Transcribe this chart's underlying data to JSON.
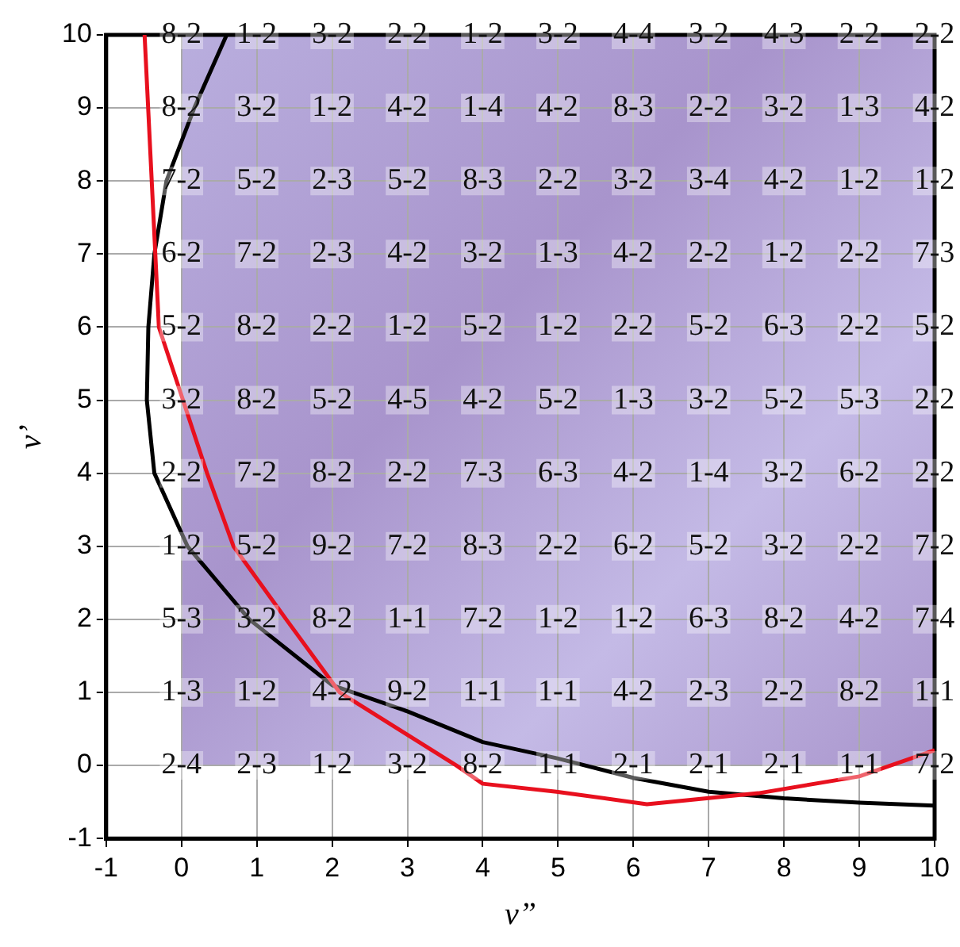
{
  "chart_data": {
    "type": "line",
    "xlabel": "ν”",
    "ylabel": "ν’",
    "xlim": [
      -1,
      10
    ],
    "xticks": [
      -1,
      0,
      1,
      2,
      3,
      4,
      5,
      6,
      7,
      8,
      9,
      10
    ],
    "ylim": [
      -1,
      10
    ],
    "yticks": [
      -1,
      0,
      1,
      2,
      3,
      4,
      5,
      6,
      7,
      8,
      9,
      10
    ],
    "grid": true,
    "legend": false,
    "marker": "none",
    "line_style": "solid",
    "series": [
      {
        "color": "#e8101e",
        "x": [
          -0.49,
          -0.3,
          0.02,
          0.34,
          0.69,
          1.39,
          2.1,
          3.65,
          4.0,
          4.98,
          6.18,
          7.66,
          9.0,
          10.0
        ],
        "values": [
          10,
          6,
          5,
          4,
          3,
          2,
          1,
          0,
          -0.25,
          -0.36,
          -0.53,
          -0.38,
          -0.15,
          0.21
        ]
      },
      {
        "color": "#000000",
        "x": [
          0.6,
          0.17,
          -0.2,
          -0.36,
          -0.44,
          -0.46,
          -0.36,
          0.08,
          0.9,
          2.0,
          3.0,
          4.0,
          4.98,
          6.0,
          7.0,
          8.0,
          9.0,
          10.0
        ],
        "values": [
          10,
          9,
          8,
          7,
          6,
          5,
          4,
          3,
          2,
          1.1,
          0.74,
          0.32,
          0.1,
          -0.17,
          -0.36,
          -0.45,
          -0.51,
          -0.55
        ]
      }
    ],
    "annotations": [
      {
        "text": "8-2",
        "x": 0,
        "y": 10
      },
      {
        "text": "1-2",
        "x": 1,
        "y": 10
      },
      {
        "text": "3-2",
        "x": 2,
        "y": 10
      },
      {
        "text": "2-2",
        "x": 3,
        "y": 10
      },
      {
        "text": "1-2",
        "x": 4,
        "y": 10
      },
      {
        "text": "3-2",
        "x": 5,
        "y": 10
      },
      {
        "text": "4-4",
        "x": 6,
        "y": 10
      },
      {
        "text": "3-2",
        "x": 7,
        "y": 10
      },
      {
        "text": "4-3",
        "x": 8,
        "y": 10
      },
      {
        "text": "2-2",
        "x": 9,
        "y": 10
      },
      {
        "text": "2-2",
        "x": 10,
        "y": 10
      },
      {
        "text": "8-2",
        "x": 0,
        "y": 9
      },
      {
        "text": "3-2",
        "x": 1,
        "y": 9
      },
      {
        "text": "1-2",
        "x": 2,
        "y": 9
      },
      {
        "text": "4-2",
        "x": 3,
        "y": 9
      },
      {
        "text": "1-4",
        "x": 4,
        "y": 9
      },
      {
        "text": "4-2",
        "x": 5,
        "y": 9
      },
      {
        "text": "8-3",
        "x": 6,
        "y": 9
      },
      {
        "text": "2-2",
        "x": 7,
        "y": 9
      },
      {
        "text": "3-2",
        "x": 8,
        "y": 9
      },
      {
        "text": "1-3",
        "x": 9,
        "y": 9
      },
      {
        "text": "4-2",
        "x": 10,
        "y": 9
      },
      {
        "text": "7-2",
        "x": 0,
        "y": 8
      },
      {
        "text": "5-2",
        "x": 1,
        "y": 8
      },
      {
        "text": "2-3",
        "x": 2,
        "y": 8
      },
      {
        "text": "5-2",
        "x": 3,
        "y": 8
      },
      {
        "text": "8-3",
        "x": 4,
        "y": 8
      },
      {
        "text": "2-2",
        "x": 5,
        "y": 8
      },
      {
        "text": "3-2",
        "x": 6,
        "y": 8
      },
      {
        "text": "3-4",
        "x": 7,
        "y": 8
      },
      {
        "text": "4-2",
        "x": 8,
        "y": 8
      },
      {
        "text": "1-2",
        "x": 9,
        "y": 8
      },
      {
        "text": "1-2",
        "x": 10,
        "y": 8
      },
      {
        "text": "6-2",
        "x": 0,
        "y": 7
      },
      {
        "text": "7-2",
        "x": 1,
        "y": 7
      },
      {
        "text": "2-3",
        "x": 2,
        "y": 7
      },
      {
        "text": "4-2",
        "x": 3,
        "y": 7
      },
      {
        "text": "3-2",
        "x": 4,
        "y": 7
      },
      {
        "text": "1-3",
        "x": 5,
        "y": 7
      },
      {
        "text": "4-2",
        "x": 6,
        "y": 7
      },
      {
        "text": "2-2",
        "x": 7,
        "y": 7
      },
      {
        "text": "1-2",
        "x": 8,
        "y": 7
      },
      {
        "text": "2-2",
        "x": 9,
        "y": 7
      },
      {
        "text": "7-3",
        "x": 10,
        "y": 7
      },
      {
        "text": "5-2",
        "x": 0,
        "y": 6
      },
      {
        "text": "8-2",
        "x": 1,
        "y": 6
      },
      {
        "text": "2-2",
        "x": 2,
        "y": 6
      },
      {
        "text": "1-2",
        "x": 3,
        "y": 6
      },
      {
        "text": "5-2",
        "x": 4,
        "y": 6
      },
      {
        "text": "1-2",
        "x": 5,
        "y": 6
      },
      {
        "text": "2-2",
        "x": 6,
        "y": 6
      },
      {
        "text": "5-2",
        "x": 7,
        "y": 6
      },
      {
        "text": "6-3",
        "x": 8,
        "y": 6
      },
      {
        "text": "2-2",
        "x": 9,
        "y": 6
      },
      {
        "text": "5-2",
        "x": 10,
        "y": 6
      },
      {
        "text": "3-2",
        "x": 0,
        "y": 5
      },
      {
        "text": "8-2",
        "x": 1,
        "y": 5
      },
      {
        "text": "5-2",
        "x": 2,
        "y": 5
      },
      {
        "text": "4-5",
        "x": 3,
        "y": 5
      },
      {
        "text": "4-2",
        "x": 4,
        "y": 5
      },
      {
        "text": "5-2",
        "x": 5,
        "y": 5
      },
      {
        "text": "1-3",
        "x": 6,
        "y": 5
      },
      {
        "text": "3-2",
        "x": 7,
        "y": 5
      },
      {
        "text": "5-2",
        "x": 8,
        "y": 5
      },
      {
        "text": "5-3",
        "x": 9,
        "y": 5
      },
      {
        "text": "2-2",
        "x": 10,
        "y": 5
      },
      {
        "text": "2-2",
        "x": 0,
        "y": 4
      },
      {
        "text": "7-2",
        "x": 1,
        "y": 4
      },
      {
        "text": "8-2",
        "x": 2,
        "y": 4
      },
      {
        "text": "2-2",
        "x": 3,
        "y": 4
      },
      {
        "text": "7-3",
        "x": 4,
        "y": 4
      },
      {
        "text": "6-3",
        "x": 5,
        "y": 4
      },
      {
        "text": "4-2",
        "x": 6,
        "y": 4
      },
      {
        "text": "1-4",
        "x": 7,
        "y": 4
      },
      {
        "text": "3-2",
        "x": 8,
        "y": 4
      },
      {
        "text": "6-2",
        "x": 9,
        "y": 4
      },
      {
        "text": "2-2",
        "x": 10,
        "y": 4
      },
      {
        "text": "1-2",
        "x": 0,
        "y": 3
      },
      {
        "text": "5-2",
        "x": 1,
        "y": 3
      },
      {
        "text": "9-2",
        "x": 2,
        "y": 3
      },
      {
        "text": "7-2",
        "x": 3,
        "y": 3
      },
      {
        "text": "8-3",
        "x": 4,
        "y": 3
      },
      {
        "text": "2-2",
        "x": 5,
        "y": 3
      },
      {
        "text": "6-2",
        "x": 6,
        "y": 3
      },
      {
        "text": "5-2",
        "x": 7,
        "y": 3
      },
      {
        "text": "3-2",
        "x": 8,
        "y": 3
      },
      {
        "text": "2-2",
        "x": 9,
        "y": 3
      },
      {
        "text": "7-2",
        "x": 10,
        "y": 3
      },
      {
        "text": "5-3",
        "x": 0,
        "y": 2
      },
      {
        "text": "3-2",
        "x": 1,
        "y": 2
      },
      {
        "text": "8-2",
        "x": 2,
        "y": 2
      },
      {
        "text": "1-1",
        "x": 3,
        "y": 2
      },
      {
        "text": "7-2",
        "x": 4,
        "y": 2
      },
      {
        "text": "1-2",
        "x": 5,
        "y": 2
      },
      {
        "text": "1-2",
        "x": 6,
        "y": 2
      },
      {
        "text": "6-3",
        "x": 7,
        "y": 2
      },
      {
        "text": "8-2",
        "x": 8,
        "y": 2
      },
      {
        "text": "4-2",
        "x": 9,
        "y": 2
      },
      {
        "text": "7-4",
        "x": 10,
        "y": 2
      },
      {
        "text": "1-3",
        "x": 0,
        "y": 1
      },
      {
        "text": "1-2",
        "x": 1,
        "y": 1
      },
      {
        "text": "4-2",
        "x": 2,
        "y": 1
      },
      {
        "text": "9-2",
        "x": 3,
        "y": 1
      },
      {
        "text": "1-1",
        "x": 4,
        "y": 1
      },
      {
        "text": "1-1",
        "x": 5,
        "y": 1
      },
      {
        "text": "4-2",
        "x": 6,
        "y": 1
      },
      {
        "text": "2-3",
        "x": 7,
        "y": 1
      },
      {
        "text": "2-2",
        "x": 8,
        "y": 1
      },
      {
        "text": "8-2",
        "x": 9,
        "y": 1
      },
      {
        "text": "1-1",
        "x": 10,
        "y": 1
      },
      {
        "text": "2-4",
        "x": 0,
        "y": 0
      },
      {
        "text": "2-3",
        "x": 1,
        "y": 0
      },
      {
        "text": "1-2",
        "x": 2,
        "y": 0
      },
      {
        "text": "3-2",
        "x": 3,
        "y": 0
      },
      {
        "text": "8-2",
        "x": 4,
        "y": 0
      },
      {
        "text": "1-1",
        "x": 5,
        "y": 0
      },
      {
        "text": "2-1",
        "x": 6,
        "y": 0
      },
      {
        "text": "2-1",
        "x": 7,
        "y": 0
      },
      {
        "text": "2-1",
        "x": 8,
        "y": 0
      },
      {
        "text": "1-1",
        "x": 9,
        "y": 0
      },
      {
        "text": "7-2",
        "x": 10,
        "y": 0
      }
    ]
  }
}
